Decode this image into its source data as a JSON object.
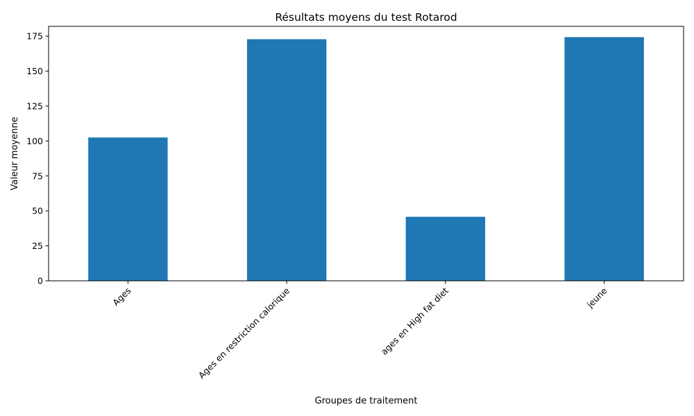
{
  "chart_data": {
    "type": "bar",
    "title": "Résultats moyens du test Rotarod",
    "xlabel": "Groupes de traitement",
    "ylabel": "Valeur moyenne",
    "categories": [
      "Ages",
      "Ages en restriction calorique",
      "ages en High fat diet",
      "jeune"
    ],
    "values": [
      102.5,
      172.8,
      45.8,
      174.3
    ],
    "ylim": [
      0,
      182
    ],
    "yticks": [
      0,
      25,
      50,
      75,
      100,
      125,
      150,
      175
    ],
    "grid": false,
    "legend": "none",
    "colors": {
      "bar": "#1f77b4"
    }
  }
}
